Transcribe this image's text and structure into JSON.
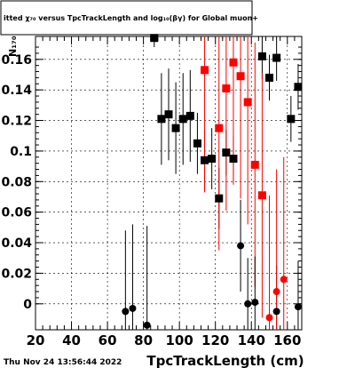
{
  "chart_data": {
    "type": "scatter",
    "title": "itted  χ₇₀  versus TpcTrackLength and log₁₀(βγ) for Global muon+",
    "xlabel": "TpcTrackLength (cm)",
    "ylabel": "N₁₇₀",
    "footer": "Thu Nov 24 13:56:44 2022",
    "xlim": [
      20,
      168
    ],
    "ylim": [
      -0.017,
      0.175
    ],
    "x_ticks": [
      20,
      40,
      60,
      80,
      100,
      120,
      140,
      160
    ],
    "y_ticks": [
      0,
      0.02,
      0.04,
      0.06,
      0.08,
      0.1,
      0.12,
      0.14,
      0.16
    ],
    "y_tick_labels": [
      "0",
      "0.02",
      "0.04",
      "0.06",
      "0.08",
      "0.1",
      "0.12",
      "0.14",
      "0.16"
    ],
    "grid": true,
    "colors": {
      "black": "#000000",
      "red": "#ff0000"
    },
    "series": [
      {
        "marker": "square",
        "color": "#000000",
        "points": [
          {
            "x": 86,
            "y": 0.174,
            "err": 0.006
          },
          {
            "x": 90,
            "y": 0.121,
            "err": 0.03
          },
          {
            "x": 94,
            "y": 0.124,
            "err": 0.03
          },
          {
            "x": 98,
            "y": 0.115,
            "err": 0.03
          },
          {
            "x": 102,
            "y": 0.121,
            "err": 0.03
          },
          {
            "x": 106,
            "y": 0.123,
            "err": 0.03
          },
          {
            "x": 110,
            "y": 0.105,
            "err": 0.02
          },
          {
            "x": 114,
            "y": 0.094,
            "err": 0.02
          },
          {
            "x": 118,
            "y": 0.095,
            "err": 0.02
          },
          {
            "x": 122,
            "y": 0.069,
            "err": 0.02
          },
          {
            "x": 126,
            "y": 0.099,
            "err": 0.015
          },
          {
            "x": 130,
            "y": 0.095,
            "err": 0.015
          },
          {
            "x": 146,
            "y": 0.162,
            "err": 0.015
          },
          {
            "x": 150,
            "y": 0.148,
            "err": 0.015
          },
          {
            "x": 154,
            "y": 0.161,
            "err": 0.015
          },
          {
            "x": 162,
            "y": 0.121,
            "err": 0.015
          },
          {
            "x": 166,
            "y": 0.142,
            "err": 0.015
          }
        ]
      },
      {
        "marker": "square",
        "color": "#ff0000",
        "points": [
          {
            "x": 114,
            "y": 0.153,
            "err": 0.08
          },
          {
            "x": 122,
            "y": 0.115,
            "err": 0.08
          },
          {
            "x": 126,
            "y": 0.141,
            "err": 0.08
          },
          {
            "x": 130,
            "y": 0.158,
            "err": 0.08
          },
          {
            "x": 134,
            "y": 0.149,
            "err": 0.08
          },
          {
            "x": 138,
            "y": 0.132,
            "err": 0.08
          },
          {
            "x": 142,
            "y": 0.091,
            "err": 0.08
          },
          {
            "x": 146,
            "y": 0.071,
            "err": 0.08
          }
        ]
      },
      {
        "marker": "circle",
        "color": "#000000",
        "points": [
          {
            "x": 70,
            "y": -0.005,
            "err": 0.053
          },
          {
            "x": 74,
            "y": -0.003,
            "err": 0.055
          },
          {
            "x": 82,
            "y": -0.014,
            "err": 0.065
          },
          {
            "x": 134,
            "y": 0.038,
            "err": 0.03
          },
          {
            "x": 138,
            "y": 0.0,
            "err": 0.03
          },
          {
            "x": 142,
            "y": 0.001,
            "err": 0.03
          },
          {
            "x": 154,
            "y": -0.005,
            "err": 0.03
          },
          {
            "x": 166,
            "y": -0.002,
            "err": 0.03
          }
        ]
      },
      {
        "marker": "circle",
        "color": "#ff0000",
        "points": [
          {
            "x": 150,
            "y": -0.009,
            "err": 0.08
          },
          {
            "x": 154,
            "y": 0.008,
            "err": 0.08
          },
          {
            "x": 158,
            "y": 0.016,
            "err": 0.08
          }
        ]
      }
    ]
  }
}
